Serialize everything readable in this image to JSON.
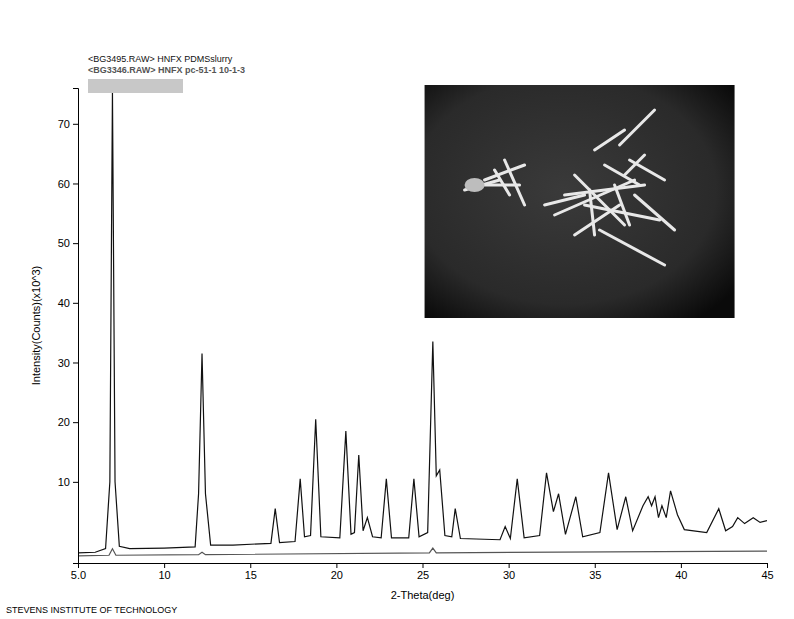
{
  "chart_data": {
    "type": "line",
    "x_label": "2-Theta(deg)",
    "y_label": "Intensity(Counts)(x10^3)",
    "annotations": [
      "STEVENS INSTITUTE OF TECHNOLOGY"
    ],
    "legend": "top-left",
    "grid": false,
    "xlim": [
      5,
      45
    ],
    "xticks": [
      {
        "value": 5,
        "label": "5.0"
      },
      10,
      15,
      20,
      25,
      30,
      35,
      40,
      45
    ],
    "ylim": [
      -3.6,
      76
    ],
    "yticks": [
      10,
      20,
      30,
      40,
      50,
      60,
      70
    ],
    "series": [
      {
        "name": "<BG3495.RAW> HNFX PDMSslurry",
        "color": "#111111",
        "x": [
          5.0,
          6.0,
          6.6,
          6.85,
          7.0,
          7.15,
          7.4,
          8.0,
          10.0,
          11.8,
          12.0,
          12.2,
          12.4,
          12.7,
          14.0,
          16.2,
          16.45,
          16.7,
          17.6,
          17.9,
          18.15,
          18.5,
          18.8,
          19.1,
          20.2,
          20.55,
          20.85,
          21.05,
          21.3,
          21.55,
          21.8,
          22.1,
          22.6,
          22.9,
          23.2,
          24.2,
          24.5,
          24.8,
          25.3,
          25.6,
          25.8,
          26.0,
          26.3,
          26.7,
          26.9,
          27.2,
          29.5,
          29.8,
          30.1,
          30.5,
          30.9,
          31.8,
          32.2,
          32.6,
          32.9,
          33.3,
          33.9,
          34.3,
          35.3,
          35.8,
          36.3,
          36.8,
          37.2,
          37.8,
          38.1,
          38.3,
          38.5,
          38.7,
          38.9,
          39.15,
          39.4,
          39.8,
          40.2,
          41.5,
          42.2,
          42.6,
          43.0,
          43.3,
          43.7,
          44.2,
          44.6,
          45.0
        ],
        "values": [
          -1.9,
          -1.8,
          -1.2,
          10,
          75.5,
          10,
          -0.8,
          -1.2,
          -1.1,
          -0.9,
          8,
          31.5,
          8,
          -0.6,
          -0.6,
          -0.3,
          5.5,
          -0.2,
          0,
          10.5,
          0.8,
          1,
          20.5,
          0.8,
          0.6,
          18.5,
          1.2,
          1.5,
          14.5,
          1.8,
          4,
          0.8,
          0.6,
          10.5,
          0.6,
          0.6,
          10.5,
          0.8,
          1.5,
          33.5,
          11,
          12,
          1,
          0.8,
          5.5,
          0.5,
          0.3,
          2.5,
          0.5,
          10.5,
          0.6,
          1,
          11.5,
          5,
          8,
          1.2,
          7.5,
          0.8,
          1.5,
          11.5,
          2,
          7.5,
          1.8,
          6,
          7.5,
          6,
          7.5,
          4,
          6,
          4,
          8.5,
          4.5,
          2,
          1.5,
          5.5,
          1.8,
          2.5,
          4,
          3,
          4,
          3.2,
          3.5
        ]
      },
      {
        "name": "<BG3346.RAW> HNFX pc-51-1 10-1-3",
        "color": "#555555",
        "x": [
          5.0,
          6.8,
          7.0,
          7.2,
          12.0,
          12.2,
          12.4,
          25.4,
          25.6,
          25.8,
          45.0
        ],
        "values": [
          -2.4,
          -2.3,
          -1.2,
          -2.3,
          -2.2,
          -1.8,
          -2.2,
          -1.9,
          -1.1,
          -1.9,
          -1.6
        ]
      }
    ]
  }
}
